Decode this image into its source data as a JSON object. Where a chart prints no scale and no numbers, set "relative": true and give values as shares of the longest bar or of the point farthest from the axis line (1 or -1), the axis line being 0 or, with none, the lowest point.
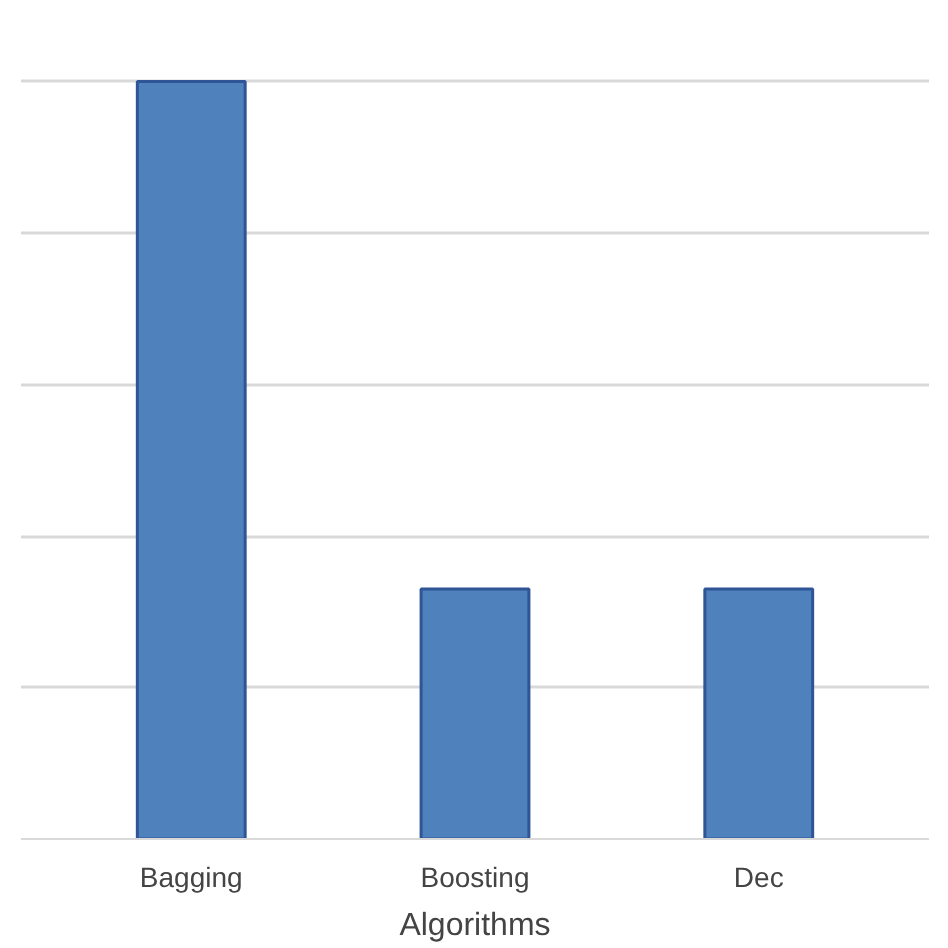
{
  "chart_data": {
    "type": "bar",
    "xlabel": "Algorithms",
    "relative": true,
    "grid": "y",
    "color": "#4f81bd",
    "categories": [
      "Bagging",
      "Boosting",
      "Dec"
    ],
    "values": [
      1,
      0.33,
      0.33
    ]
  }
}
